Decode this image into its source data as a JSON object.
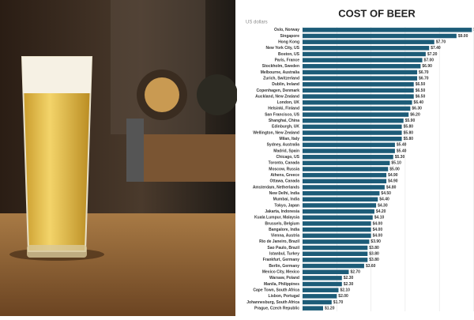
{
  "chart_data": {
    "type": "bar",
    "orientation": "horizontal",
    "title": "COST OF BEER",
    "subtitle": "US dollars",
    "categories": [
      "Oslo, Norway",
      "Singapore",
      "Hong Kong",
      "New York City, US",
      "Boston, US",
      "Paris, France",
      "Stockholm, Sweden",
      "Melbourne, Australia",
      "Zurich, Switzerland",
      "Dublin, Ireland",
      "Copenhagen, Denmark",
      "Auckland, New Zealand",
      "London, UK",
      "Helsinki, Finland",
      "San Francisco, US",
      "Shanghai, China",
      "Edinburgh, UK",
      "Wellington, New Zealand",
      "Milan, Italy",
      "Sydney, Australia",
      "Madrid, Spain",
      "Chicago, US",
      "Toronto, Canada",
      "Moscow, Russia",
      "Athens, Greece",
      "Ottawa, Canada",
      "Amsterdam, Netherlands",
      "New Delhi, India",
      "Mumbai, India",
      "Tokyo, Japan",
      "Jakarta, Indonesia",
      "Kuala Lumpur, Malaysia",
      "Brussels, Belgium",
      "Bangalore, India",
      "Vienna, Austria",
      "Rio de Janeiro, Brazil",
      "Sao Paulo, Brazil",
      "Istanbul, Turkey",
      "Frankfurt, Germany",
      "Berlin, Germany",
      "Mexico City, Mexico",
      "Warsaw, Poland",
      "Manila, Philippines",
      "Cape Town, South Africa",
      "Lisbon, Portugal",
      "Johannesburg, South Africa",
      "Prague, Czech Republic"
    ],
    "values": [
      9.9,
      9,
      7.7,
      7.4,
      7.2,
      7,
      6.9,
      6.7,
      6.7,
      6.5,
      6.5,
      6.5,
      6.4,
      6.3,
      6.2,
      5.9,
      5.8,
      5.8,
      5.8,
      5.4,
      5.4,
      5.3,
      5.1,
      5,
      4.9,
      4.9,
      4.8,
      4.5,
      4.4,
      4.3,
      4.2,
      4.1,
      4,
      4,
      4,
      3.9,
      3.8,
      3.8,
      3.8,
      3.6,
      2.7,
      2.3,
      2.3,
      2.1,
      2,
      1.7,
      1.2
    ],
    "value_labels": [
      "$9.90",
      "$9.00",
      "$7.70",
      "$7.40",
      "$7.20",
      "$7.00",
      "$6.90",
      "$6.70",
      "$6.70",
      "$6.50",
      "$6.50",
      "$6.50",
      "$6.40",
      "$6.30",
      "$6.20",
      "$5.90",
      "$5.80",
      "$5.80",
      "$5.80",
      "$5.40",
      "$5.40",
      "$5.30",
      "$5.10",
      "$5.00",
      "$4.90",
      "$4.90",
      "$4.80",
      "$4.50",
      "$4.40",
      "$4.30",
      "$4.20",
      "$4.10",
      "$4.00",
      "$4.00",
      "$4.00",
      "$3.90",
      "$3.80",
      "$3.80",
      "$3.80",
      "$3.60",
      "$2.70",
      "$2.30",
      "$2.30",
      "$2.10",
      "$2.00",
      "$1.70",
      "$1.20"
    ],
    "color": "#1d5c78",
    "xlim": [
      0,
      10
    ],
    "xticks": [
      0,
      2,
      4,
      6,
      8,
      10
    ],
    "grid": true
  }
}
